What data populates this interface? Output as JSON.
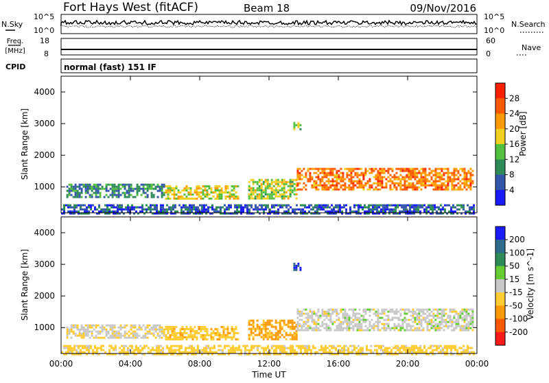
{
  "header": {
    "station": "Fort Hays West (fitACF)",
    "beam": "Beam 18",
    "date": "09/Nov/2016"
  },
  "strips": {
    "nsky_label": "N.Sky",
    "nsky_ticks": [
      "10^5",
      "10^0"
    ],
    "nsearch_label": "N.Search",
    "nsearch_ticks": [
      "10^5",
      "10^0"
    ],
    "freq_label_1": "Freq.",
    "freq_label_2": "[MHz]",
    "freq_ticks": [
      "18",
      "8"
    ],
    "nave_label": "Nave",
    "nave_ticks": [
      "60",
      "0"
    ],
    "cpid_label": "CPID",
    "cpid_value": "normal (fast) 151 IF"
  },
  "chart_data": [
    {
      "type": "heatmap",
      "name": "power-panel",
      "ylabel": "Slant Range [km]",
      "yticks": [
        1000,
        2000,
        3000,
        4000
      ],
      "ylim": [
        180,
        4500
      ],
      "xlim": [
        0,
        24
      ],
      "colorbar": {
        "label": "Power [dB]",
        "ticks": [
          4,
          8,
          12,
          16,
          20,
          24,
          28
        ],
        "range": [
          0,
          32
        ],
        "colors": [
          "#1a1aff",
          "#3355aa",
          "#2e8b57",
          "#55c040",
          "#f0d020",
          "#ff9900",
          "#ff5a00",
          "#ff2000"
        ]
      },
      "echo_regions": [
        {
          "t_start": 0.3,
          "t_end": 6.0,
          "r_low": 700,
          "r_high": 1100,
          "power_db": 9
        },
        {
          "t_start": 6.0,
          "t_end": 10.2,
          "r_low": 650,
          "r_high": 1050,
          "power_db": 17
        },
        {
          "t_start": 10.8,
          "t_end": 13.6,
          "r_low": 600,
          "r_high": 1250,
          "power_db": 16
        },
        {
          "t_start": 13.6,
          "t_end": 23.7,
          "r_low": 900,
          "r_high": 1600,
          "power_db": 24
        },
        {
          "t_start": 0.0,
          "t_end": 23.8,
          "r_low": 180,
          "r_high": 450,
          "power_db": 6
        },
        {
          "t_start": 13.4,
          "t_end": 13.8,
          "r_low": 2800,
          "r_high": 3050,
          "power_db": 14
        }
      ]
    },
    {
      "type": "heatmap",
      "name": "velocity-panel",
      "ylabel": "Slant Range [km]",
      "yticks": [
        1000,
        2000,
        3000,
        4000
      ],
      "ylim": [
        180,
        4500
      ],
      "xlim": [
        0,
        24
      ],
      "xlabel": "Time UT",
      "xticks": [
        "00:00",
        "04:00",
        "08:00",
        "12:00",
        "16:00",
        "20:00",
        "00:00"
      ],
      "colorbar": {
        "label": "Velocity [m s^-1]",
        "ticks": [
          200,
          100,
          50,
          15,
          -15,
          -50,
          -100,
          -200
        ],
        "colors": [
          "#1a1aff",
          "#2e6b8b",
          "#2e8b57",
          "#66cc33",
          "#c8c8c8",
          "#ffcc33",
          "#ff9900",
          "#ff5a00",
          "#ff1a1a"
        ]
      },
      "echo_regions": [
        {
          "t_start": 0.3,
          "t_end": 6.0,
          "r_low": 700,
          "r_high": 1100,
          "velocity": -10
        },
        {
          "t_start": 6.0,
          "t_end": 10.2,
          "r_low": 650,
          "r_high": 1050,
          "velocity": -40
        },
        {
          "t_start": 10.8,
          "t_end": 13.6,
          "r_low": 600,
          "r_high": 1250,
          "velocity": -60
        },
        {
          "t_start": 13.6,
          "t_end": 23.7,
          "r_low": 900,
          "r_high": 1600,
          "velocity": 0
        },
        {
          "t_start": 0.0,
          "t_end": 23.8,
          "r_low": 180,
          "r_high": 450,
          "velocity": -30
        },
        {
          "t_start": 13.4,
          "t_end": 13.8,
          "r_low": 2800,
          "r_high": 3050,
          "velocity": 200
        }
      ]
    }
  ]
}
